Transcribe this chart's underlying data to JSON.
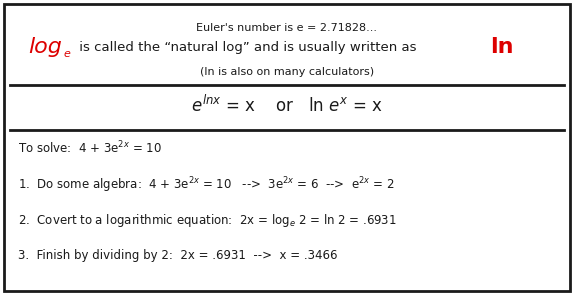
{
  "bg_color": "#ffffff",
  "border_color": "#1a1a1a",
  "text_color": "#1a1a1a",
  "red_color": "#dd0000",
  "euler_line": "Euler's number is e = 2.71828...",
  "calc_line": "(ln is also on many calculators)",
  "log_text": "log",
  "e_sub": "e",
  "middle_text": " is called the “natural log” and is usually written as  ",
  "ln_text": "ln",
  "formula_left": "$e^{lnx}$",
  "formula_eq1": " = x",
  "formula_or": "   or   ",
  "formula_right": "ln $e^{x}$",
  "formula_eq2": " = x",
  "solve": "To solve:  4 + 3e$^{2x}$ = 10",
  "step1_a": "1.  Do some algebra:  4 + 3e",
  "step1_b": "2x",
  "step1_c": " = 10   -->  3e",
  "step1_d": "2x",
  "step1_e": " = 6  -->  e",
  "step1_f": "2x",
  "step1_g": " = 2",
  "step2": "2.  Covert to a logarithmic equation:  2x = log",
  "step2_sub": "e",
  "step2_rest": " 2 = ln 2 = .6931",
  "step3": "3.  Finish by dividing by 2:  2x = .6931  -->  x = .3466"
}
